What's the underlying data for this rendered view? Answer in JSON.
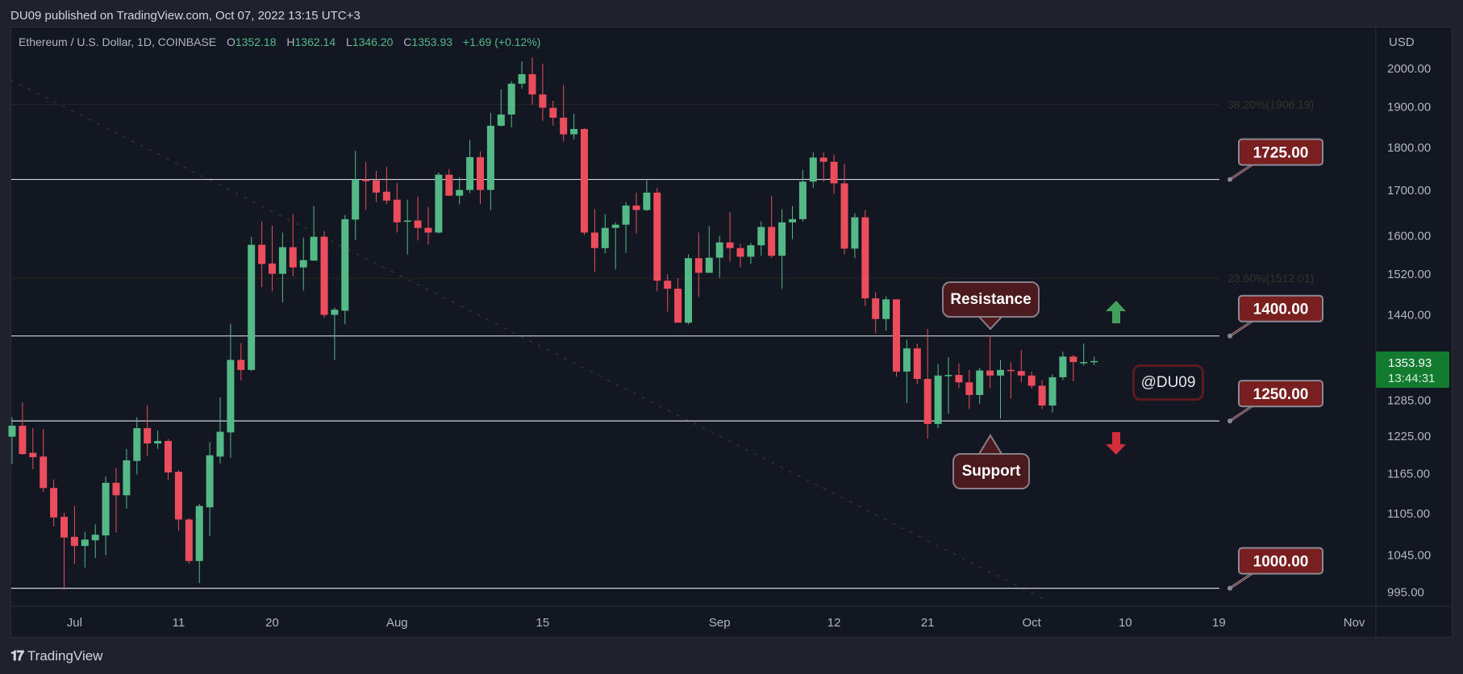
{
  "header": {
    "published": "DU09 published on TradingView.com, Oct 07, 2022 13:15 UTC+3"
  },
  "legend": {
    "symbol": "Ethereum / U.S. Dollar, 1D, COINBASE",
    "o_label": "O",
    "o": "1352.18",
    "h_label": "H",
    "h": "1362.14",
    "l_label": "L",
    "l": "1346.20",
    "c_label": "C",
    "c": "1353.93",
    "change": "+1.69 (+0.12%)"
  },
  "price_axis": {
    "currency": "USD",
    "current_price": "1353.93",
    "countdown": "13:44:31"
  },
  "annotations": {
    "resistance": "Resistance",
    "support": "Support",
    "watermark": "@DU09",
    "up_arrow": "arrow-up-icon",
    "down_arrow": "arrow-down-icon"
  },
  "footer": {
    "brand": "TradingView",
    "logo": "TV"
  },
  "colors": {
    "up": "#53b987",
    "down": "#eb4d5c",
    "level_box": "#7a1f1f",
    "current_price_box": "#137b2f",
    "background": "#131722"
  },
  "chart_data": {
    "type": "candlestick",
    "scale": "log",
    "ylim": [
      985,
      2040
    ],
    "grid": false,
    "fields": [
      "date",
      "open",
      "high",
      "low",
      "close"
    ],
    "candles": [
      [
        "2022-06-25",
        1224,
        1256,
        1180,
        1242
      ],
      [
        "2022-06-26",
        1242,
        1281,
        1195,
        1196
      ],
      [
        "2022-06-27",
        1198,
        1238,
        1172,
        1191
      ],
      [
        "2022-06-28",
        1192,
        1237,
        1137,
        1143
      ],
      [
        "2022-06-29",
        1143,
        1156,
        1086,
        1099
      ],
      [
        "2022-06-30",
        1100,
        1106,
        998,
        1070
      ],
      [
        "2022-07-01",
        1071,
        1116,
        1033,
        1058
      ],
      [
        "2022-07-02",
        1058,
        1078,
        1028,
        1067
      ],
      [
        "2022-07-03",
        1066,
        1089,
        1041,
        1074
      ],
      [
        "2022-07-04",
        1073,
        1161,
        1045,
        1151
      ],
      [
        "2022-07-05",
        1151,
        1174,
        1077,
        1132
      ],
      [
        "2022-07-06",
        1132,
        1204,
        1112,
        1186
      ],
      [
        "2022-07-07",
        1185,
        1256,
        1164,
        1238
      ],
      [
        "2022-07-08",
        1238,
        1276,
        1193,
        1213
      ],
      [
        "2022-07-09",
        1213,
        1234,
        1204,
        1217
      ],
      [
        "2022-07-10",
        1217,
        1220,
        1155,
        1167
      ],
      [
        "2022-07-11",
        1168,
        1171,
        1080,
        1096
      ],
      [
        "2022-07-12",
        1096,
        1098,
        1033,
        1037
      ],
      [
        "2022-07-13",
        1037,
        1119,
        1007,
        1116
      ],
      [
        "2022-07-14",
        1114,
        1215,
        1072,
        1194
      ],
      [
        "2022-07-15",
        1192,
        1290,
        1181,
        1232
      ],
      [
        "2022-07-16",
        1231,
        1423,
        1190,
        1356
      ],
      [
        "2022-07-17",
        1356,
        1387,
        1319,
        1338
      ],
      [
        "2022-07-18",
        1338,
        1598,
        1336,
        1581
      ],
      [
        "2022-07-19",
        1581,
        1631,
        1494,
        1541
      ],
      [
        "2022-07-20",
        1542,
        1622,
        1486,
        1521
      ],
      [
        "2022-07-21",
        1521,
        1607,
        1464,
        1576
      ],
      [
        "2022-07-22",
        1576,
        1647,
        1516,
        1534
      ],
      [
        "2022-07-23",
        1534,
        1596,
        1487,
        1549
      ],
      [
        "2022-07-24",
        1548,
        1665,
        1548,
        1598
      ],
      [
        "2022-07-25",
        1598,
        1610,
        1434,
        1440
      ],
      [
        "2022-07-26",
        1440,
        1454,
        1356,
        1450
      ],
      [
        "2022-07-27",
        1448,
        1645,
        1422,
        1636
      ],
      [
        "2022-07-28",
        1635,
        1792,
        1591,
        1725
      ],
      [
        "2022-07-29",
        1725,
        1766,
        1656,
        1721
      ],
      [
        "2022-07-30",
        1723,
        1745,
        1674,
        1695
      ],
      [
        "2022-07-31",
        1697,
        1754,
        1669,
        1677
      ],
      [
        "2022-08-01",
        1679,
        1717,
        1607,
        1629
      ],
      [
        "2022-08-02",
        1631,
        1679,
        1561,
        1633
      ],
      [
        "2022-08-03",
        1633,
        1686,
        1590,
        1617
      ],
      [
        "2022-08-04",
        1617,
        1663,
        1581,
        1607
      ],
      [
        "2022-08-05",
        1607,
        1741,
        1605,
        1736
      ],
      [
        "2022-08-06",
        1736,
        1749,
        1687,
        1688
      ],
      [
        "2022-08-07",
        1688,
        1730,
        1669,
        1701
      ],
      [
        "2022-08-08",
        1701,
        1818,
        1694,
        1777
      ],
      [
        "2022-08-09",
        1777,
        1791,
        1669,
        1701
      ],
      [
        "2022-08-10",
        1701,
        1885,
        1656,
        1853
      ],
      [
        "2022-08-11",
        1853,
        1945,
        1851,
        1881
      ],
      [
        "2022-08-12",
        1881,
        1966,
        1849,
        1960
      ],
      [
        "2022-08-13",
        1960,
        2019,
        1947,
        1985
      ],
      [
        "2022-08-14",
        1985,
        2030,
        1906,
        1932
      ],
      [
        "2022-08-15",
        1932,
        2013,
        1865,
        1898
      ],
      [
        "2022-08-16",
        1898,
        1916,
        1853,
        1873
      ],
      [
        "2022-08-17",
        1873,
        1957,
        1814,
        1832
      ],
      [
        "2022-08-18",
        1832,
        1883,
        1820,
        1845
      ],
      [
        "2022-08-19",
        1845,
        1847,
        1602,
        1607
      ],
      [
        "2022-08-20",
        1607,
        1658,
        1525,
        1574
      ],
      [
        "2022-08-21",
        1574,
        1647,
        1563,
        1617
      ],
      [
        "2022-08-22",
        1617,
        1629,
        1530,
        1624
      ],
      [
        "2022-08-23",
        1624,
        1674,
        1564,
        1666
      ],
      [
        "2022-08-24",
        1666,
        1695,
        1605,
        1656
      ],
      [
        "2022-08-25",
        1656,
        1723,
        1654,
        1695
      ],
      [
        "2022-08-26",
        1695,
        1706,
        1486,
        1507
      ],
      [
        "2022-08-27",
        1507,
        1520,
        1446,
        1491
      ],
      [
        "2022-08-28",
        1491,
        1512,
        1425,
        1425
      ],
      [
        "2022-08-29",
        1425,
        1561,
        1422,
        1553
      ],
      [
        "2022-08-30",
        1553,
        1607,
        1475,
        1523
      ],
      [
        "2022-08-31",
        1523,
        1621,
        1523,
        1554
      ],
      [
        "2022-09-01",
        1554,
        1600,
        1513,
        1586
      ],
      [
        "2022-09-02",
        1586,
        1651,
        1546,
        1574
      ],
      [
        "2022-09-03",
        1574,
        1583,
        1534,
        1556
      ],
      [
        "2022-09-04",
        1556,
        1585,
        1541,
        1580
      ],
      [
        "2022-09-05",
        1580,
        1631,
        1558,
        1619
      ],
      [
        "2022-09-06",
        1619,
        1687,
        1554,
        1558
      ],
      [
        "2022-09-07",
        1558,
        1658,
        1491,
        1629
      ],
      [
        "2022-09-08",
        1629,
        1665,
        1593,
        1636
      ],
      [
        "2022-09-09",
        1636,
        1747,
        1631,
        1720
      ],
      [
        "2022-09-10",
        1720,
        1789,
        1706,
        1776
      ],
      [
        "2022-09-11",
        1776,
        1789,
        1720,
        1766
      ],
      [
        "2022-09-12",
        1766,
        1783,
        1692,
        1716
      ],
      [
        "2022-09-13",
        1716,
        1762,
        1561,
        1573
      ],
      [
        "2022-09-14",
        1573,
        1649,
        1553,
        1640
      ],
      [
        "2022-09-15",
        1640,
        1656,
        1457,
        1472
      ],
      [
        "2022-09-16",
        1472,
        1484,
        1405,
        1432
      ],
      [
        "2022-09-17",
        1432,
        1476,
        1410,
        1470
      ],
      [
        "2022-09-18",
        1470,
        1470,
        1326,
        1335
      ],
      [
        "2022-09-19",
        1335,
        1393,
        1280,
        1377
      ],
      [
        "2022-09-20",
        1377,
        1386,
        1313,
        1322
      ],
      [
        "2022-09-21",
        1322,
        1413,
        1221,
        1245
      ],
      [
        "2022-09-22",
        1245,
        1349,
        1238,
        1328
      ],
      [
        "2022-09-23",
        1328,
        1361,
        1262,
        1329
      ],
      [
        "2022-09-24",
        1329,
        1350,
        1306,
        1316
      ],
      [
        "2022-09-25",
        1316,
        1338,
        1270,
        1294
      ],
      [
        "2022-09-26",
        1294,
        1342,
        1279,
        1337
      ],
      [
        "2022-09-27",
        1337,
        1401,
        1306,
        1328
      ],
      [
        "2022-09-28",
        1328,
        1356,
        1254,
        1338
      ],
      [
        "2022-09-29",
        1338,
        1352,
        1288,
        1336
      ],
      [
        "2022-09-30",
        1336,
        1374,
        1316,
        1328
      ],
      [
        "2022-10-01",
        1328,
        1335,
        1305,
        1310
      ],
      [
        "2022-10-02",
        1310,
        1320,
        1270,
        1276
      ],
      [
        "2022-10-03",
        1276,
        1330,
        1264,
        1325
      ],
      [
        "2022-10-04",
        1325,
        1371,
        1320,
        1362
      ],
      [
        "2022-10-05",
        1362,
        1365,
        1318,
        1352
      ],
      [
        "2022-10-06",
        1352,
        1386,
        1346,
        1352
      ],
      [
        "2022-10-07",
        1352.18,
        1362.14,
        1346.2,
        1353.93
      ]
    ],
    "y_ticks": [
      {
        "value": 2000,
        "label": "2000.00"
      },
      {
        "value": 1900,
        "label": "1900.00"
      },
      {
        "value": 1800,
        "label": "1800.00"
      },
      {
        "value": 1700,
        "label": "1700.00"
      },
      {
        "value": 1600,
        "label": "1600.00"
      },
      {
        "value": 1520,
        "label": "1520.00"
      },
      {
        "value": 1440,
        "label": "1440.00"
      },
      {
        "value": 1285,
        "label": "1285.00"
      },
      {
        "value": 1225,
        "label": "1225.00"
      },
      {
        "value": 1165,
        "label": "1165.00"
      },
      {
        "value": 1105,
        "label": "1105.00"
      },
      {
        "value": 1045,
        "label": "1045.00"
      },
      {
        "value": 995,
        "label": "995.00"
      }
    ],
    "x_ticks": [
      {
        "date": "2022-07-01",
        "label": "Jul"
      },
      {
        "date": "2022-07-11",
        "label": "11"
      },
      {
        "date": "2022-07-20",
        "label": "20"
      },
      {
        "date": "2022-08-01",
        "label": "Aug"
      },
      {
        "date": "2022-08-15",
        "label": "15"
      },
      {
        "date": "2022-09-01",
        "label": "Sep"
      },
      {
        "date": "2022-09-12",
        "label": "12"
      },
      {
        "date": "2022-09-21",
        "label": "21"
      },
      {
        "date": "2022-10-01",
        "label": "Oct"
      },
      {
        "date": "2022-10-10",
        "label": "10"
      },
      {
        "date": "2022-10-19",
        "label": "19"
      },
      {
        "date": "2022-11-01",
        "label": "Nov"
      }
    ],
    "levels": [
      {
        "value": 1725,
        "label": "1725.00"
      },
      {
        "value": 1400,
        "label": "1400.00"
      },
      {
        "value": 1250,
        "label": "1250.00"
      },
      {
        "value": 1000,
        "label": "1000.00"
      }
    ],
    "fib_levels": [
      {
        "value": 1906.19,
        "label": "38.20%(1906.19)"
      },
      {
        "value": 1512.01,
        "label": "23.60%(1512.01)"
      }
    ]
  }
}
